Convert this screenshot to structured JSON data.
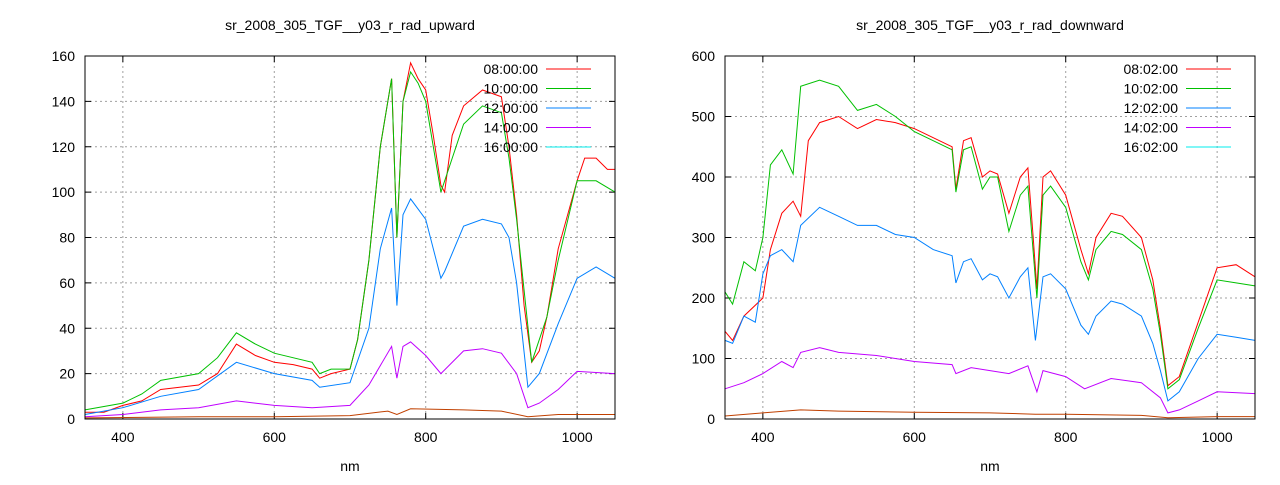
{
  "chart_data": [
    {
      "type": "line",
      "title": "sr_2008_305_TGF__y03_r_rad_upward",
      "xlabel": "nm",
      "ylabel": "",
      "xlim": [
        350,
        1050
      ],
      "ylim": [
        0,
        160
      ],
      "xticks": [
        400,
        600,
        800,
        1000
      ],
      "yticks": [
        0,
        20,
        40,
        60,
        80,
        100,
        120,
        140,
        160
      ],
      "grid": true,
      "legend_position": "top-right",
      "series": [
        {
          "name": "08:00:00",
          "color": "#ff0000",
          "line_color": "#ff0000",
          "x": [
            350,
            375,
            400,
            425,
            450,
            475,
            500,
            525,
            550,
            575,
            600,
            625,
            650,
            660,
            675,
            700,
            710,
            725,
            740,
            755,
            762,
            770,
            780,
            790,
            800,
            810,
            820,
            825,
            835,
            850,
            875,
            900,
            910,
            920,
            930,
            940,
            950,
            960,
            975,
            1000,
            1010,
            1025,
            1040,
            1050
          ],
          "y": [
            3,
            3,
            6,
            8,
            13,
            14,
            15,
            20,
            33,
            28,
            25,
            24,
            22,
            18,
            20,
            22,
            35,
            70,
            120,
            150,
            80,
            140,
            157,
            150,
            145,
            125,
            103,
            100,
            125,
            138,
            145,
            142,
            120,
            90,
            50,
            25,
            30,
            45,
            75,
            105,
            115,
            115,
            110,
            110
          ]
        },
        {
          "name": "10:00:00",
          "color": "#00c000",
          "line_color": "#00c000",
          "x": [
            350,
            400,
            425,
            450,
            500,
            525,
            550,
            575,
            600,
            650,
            660,
            675,
            700,
            710,
            725,
            740,
            755,
            762,
            770,
            780,
            790,
            800,
            820,
            850,
            875,
            900,
            910,
            920,
            940,
            960,
            975,
            1000,
            1025,
            1050
          ],
          "y": [
            4,
            7,
            11,
            17,
            20,
            27,
            38,
            33,
            29,
            25,
            20,
            22,
            22,
            35,
            70,
            120,
            150,
            80,
            140,
            153,
            148,
            140,
            100,
            130,
            138,
            135,
            115,
            88,
            25,
            45,
            70,
            105,
            105,
            100
          ]
        },
        {
          "name": "12:00:00",
          "color": "#0080ff",
          "line_color": "#0080ff",
          "x": [
            350,
            400,
            450,
            500,
            550,
            600,
            650,
            660,
            700,
            725,
            740,
            755,
            762,
            770,
            780,
            800,
            820,
            825,
            850,
            875,
            900,
            910,
            920,
            935,
            950,
            975,
            1000,
            1025,
            1050
          ],
          "y": [
            2,
            5,
            10,
            13,
            25,
            20,
            17,
            14,
            16,
            40,
            75,
            93,
            50,
            90,
            97,
            88,
            62,
            65,
            85,
            88,
            86,
            80,
            60,
            14,
            20,
            42,
            62,
            67,
            62
          ]
        },
        {
          "name": "14:00:00",
          "color": "#c000ff",
          "line_color": "#c000ff",
          "x": [
            350,
            400,
            450,
            500,
            550,
            600,
            650,
            700,
            725,
            755,
            762,
            770,
            780,
            800,
            820,
            850,
            875,
            900,
            920,
            935,
            950,
            975,
            1000,
            1050
          ],
          "y": [
            1,
            2,
            4,
            5,
            8,
            6,
            5,
            6,
            15,
            32,
            18,
            32,
            34,
            28,
            20,
            30,
            31,
            29,
            20,
            5,
            7,
            13,
            21,
            20
          ]
        },
        {
          "name": "16:00:00",
          "color": "#00eeee",
          "line_color": "#c04000",
          "x": [
            350,
            500,
            600,
            700,
            750,
            762,
            780,
            850,
            900,
            935,
            975,
            1050
          ],
          "y": [
            0.5,
            1,
            1,
            1.5,
            3.5,
            2,
            4.5,
            4,
            3.5,
            1,
            2,
            2
          ]
        }
      ]
    },
    {
      "type": "line",
      "title": "sr_2008_305_TGF__y03_r_rad_downward",
      "xlabel": "nm",
      "ylabel": "",
      "xlim": [
        350,
        1050
      ],
      "ylim": [
        0,
        600
      ],
      "xticks": [
        400,
        600,
        800,
        1000
      ],
      "yticks": [
        0,
        100,
        200,
        300,
        400,
        500,
        600
      ],
      "grid": true,
      "legend_position": "top-right",
      "series": [
        {
          "name": "08:02:00",
          "color": "#ff0000",
          "line_color": "#ff0000",
          "x": [
            350,
            360,
            375,
            400,
            410,
            425,
            440,
            450,
            460,
            475,
            500,
            525,
            550,
            575,
            600,
            625,
            650,
            655,
            665,
            675,
            690,
            700,
            710,
            725,
            740,
            750,
            757,
            762,
            770,
            780,
            800,
            820,
            830,
            840,
            860,
            875,
            900,
            915,
            925,
            935,
            950,
            975,
            1000,
            1025,
            1050
          ],
          "y": [
            145,
            130,
            170,
            200,
            280,
            340,
            360,
            335,
            460,
            490,
            500,
            480,
            495,
            490,
            480,
            465,
            450,
            380,
            460,
            465,
            400,
            410,
            405,
            340,
            400,
            415,
            300,
            215,
            400,
            410,
            370,
            280,
            240,
            300,
            340,
            335,
            300,
            230,
            150,
            55,
            70,
            160,
            250,
            255,
            235
          ]
        },
        {
          "name": "10:02:00",
          "color": "#00c000",
          "line_color": "#00c000",
          "x": [
            350,
            360,
            375,
            390,
            400,
            410,
            425,
            440,
            450,
            475,
            500,
            525,
            550,
            575,
            600,
            625,
            650,
            655,
            665,
            675,
            690,
            700,
            710,
            725,
            740,
            750,
            762,
            770,
            780,
            800,
            820,
            830,
            840,
            860,
            875,
            900,
            915,
            925,
            935,
            950,
            975,
            1000,
            1025,
            1050
          ],
          "y": [
            210,
            190,
            260,
            245,
            300,
            420,
            445,
            405,
            550,
            560,
            550,
            510,
            520,
            500,
            475,
            460,
            445,
            375,
            445,
            450,
            380,
            400,
            400,
            310,
            370,
            385,
            200,
            370,
            385,
            350,
            260,
            230,
            280,
            310,
            305,
            280,
            215,
            140,
            50,
            65,
            150,
            230,
            225,
            220
          ]
        },
        {
          "name": "12:02:00",
          "color": "#0080ff",
          "line_color": "#0080ff",
          "x": [
            350,
            360,
            375,
            390,
            400,
            410,
            425,
            440,
            450,
            475,
            500,
            525,
            550,
            575,
            600,
            625,
            650,
            655,
            665,
            675,
            690,
            700,
            710,
            725,
            740,
            750,
            760,
            770,
            780,
            800,
            820,
            830,
            840,
            860,
            875,
            900,
            915,
            925,
            935,
            950,
            975,
            1000,
            1025,
            1050
          ],
          "y": [
            130,
            125,
            170,
            160,
            240,
            270,
            280,
            260,
            320,
            350,
            335,
            320,
            320,
            305,
            300,
            280,
            270,
            225,
            260,
            265,
            230,
            240,
            235,
            200,
            235,
            250,
            130,
            235,
            240,
            215,
            155,
            140,
            170,
            195,
            190,
            170,
            125,
            80,
            30,
            45,
            100,
            140,
            135,
            130
          ]
        },
        {
          "name": "14:02:00",
          "color": "#c000ff",
          "line_color": "#c000ff",
          "x": [
            350,
            375,
            400,
            425,
            440,
            450,
            475,
            500,
            550,
            600,
            650,
            655,
            675,
            700,
            725,
            750,
            762,
            770,
            800,
            825,
            860,
            900,
            925,
            935,
            950,
            975,
            1000,
            1050
          ],
          "y": [
            50,
            60,
            75,
            95,
            85,
            110,
            118,
            110,
            105,
            95,
            90,
            75,
            85,
            80,
            75,
            88,
            45,
            80,
            70,
            50,
            67,
            60,
            35,
            10,
            15,
            30,
            45,
            42
          ]
        },
        {
          "name": "16:02:00",
          "color": "#00eeee",
          "line_color": "#c04000",
          "x": [
            350,
            400,
            450,
            500,
            600,
            700,
            760,
            800,
            900,
            935,
            1000,
            1050
          ],
          "y": [
            5,
            10,
            15,
            13,
            11,
            10,
            8,
            8,
            6,
            2,
            4,
            4
          ]
        }
      ]
    }
  ]
}
